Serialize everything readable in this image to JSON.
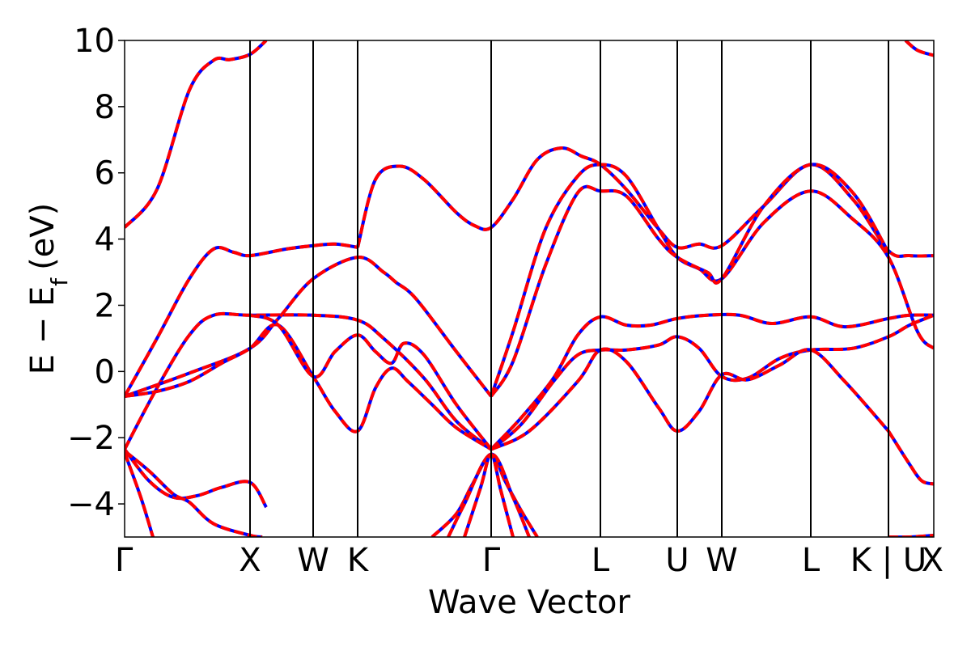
{
  "chart_data": {
    "type": "line",
    "title": "",
    "xlabel": "Wave Vector",
    "ylabel": "E − E",
    "ylabel_subscript": "f",
    "ylabel_unit": "(eV)",
    "ylim": [
      -5,
      10
    ],
    "xlim": [
      0,
      1
    ],
    "grid": false,
    "yticks": [
      {
        "value": 10,
        "label": "10"
      },
      {
        "value": 8,
        "label": "8"
      },
      {
        "value": 6,
        "label": "6"
      },
      {
        "value": 4,
        "label": "4"
      },
      {
        "value": 2,
        "label": "2"
      },
      {
        "value": 0,
        "label": "0"
      },
      {
        "value": -2,
        "label": "−2"
      },
      {
        "value": -4,
        "label": "−4"
      }
    ],
    "kpoints": [
      {
        "label": "Γ",
        "x": 0.0
      },
      {
        "label": "X",
        "x": 0.155
      },
      {
        "label": "W",
        "x": 0.233
      },
      {
        "label": "K",
        "x": 0.288
      },
      {
        "label": "Γ",
        "x": 0.453
      },
      {
        "label": "L",
        "x": 0.588
      },
      {
        "label": "U",
        "x": 0.683
      },
      {
        "label": "W",
        "x": 0.738
      },
      {
        "label": "L",
        "x": 0.848
      },
      {
        "label": "K | U",
        "x": 0.944
      },
      {
        "label": "X",
        "x": 1.0
      }
    ],
    "series_style": [
      {
        "color": "#ff0000",
        "dash": "solid"
      },
      {
        "color": "#0000ff",
        "dash": "dashed"
      }
    ],
    "bands": [
      {
        "x": [
          0,
          0.04,
          0.08,
          0.11,
          0.13,
          0.155,
          0.175
        ],
        "y": [
          4.35,
          5.5,
          8.5,
          9.4,
          9.42,
          9.58,
          10.0
        ]
      },
      {
        "x": [
          0,
          0.04,
          0.08,
          0.11,
          0.135,
          0.155,
          0.2,
          0.233,
          0.26,
          0.288
        ],
        "y": [
          -0.75,
          1.0,
          2.8,
          3.7,
          3.6,
          3.5,
          3.7,
          3.8,
          3.85,
          3.75
        ]
      },
      {
        "x": [
          0,
          0.04,
          0.08,
          0.11,
          0.155,
          0.233,
          0.288,
          0.32,
          0.37,
          0.41,
          0.453
        ],
        "y": [
          -2.35,
          -0.5,
          1.1,
          1.7,
          1.7,
          1.7,
          1.55,
          1.0,
          -0.2,
          -1.5,
          -2.35
        ]
      },
      {
        "x": [
          0,
          0.08,
          0.155,
          0.19,
          0.233,
          0.288,
          0.32,
          0.335,
          0.36,
          0.41,
          0.453
        ],
        "y": [
          -0.75,
          -0.05,
          0.7,
          1.6,
          2.8,
          3.45,
          3.0,
          2.7,
          2.2,
          0.6,
          -0.75
        ]
      },
      {
        "x": [
          0,
          0.04,
          0.08,
          0.12,
          0.155,
          0.19,
          0.233,
          0.26,
          0.288,
          0.31,
          0.33,
          0.35,
          0.38,
          0.41,
          0.453
        ],
        "y": [
          -0.75,
          -0.6,
          -0.3,
          0.25,
          0.7,
          1.4,
          -0.15,
          -1.2,
          -1.8,
          -0.5,
          0.1,
          -0.3,
          -1.0,
          -1.7,
          -2.35
        ]
      },
      {
        "x": [
          0.155,
          0.19,
          0.233,
          0.26,
          0.288,
          0.31,
          0.33,
          0.345,
          0.37,
          0.41,
          0.453
        ],
        "y": [
          1.7,
          1.4,
          -0.15,
          0.6,
          1.1,
          0.6,
          0.25,
          0.85,
          0.5,
          -1.0,
          -2.35
        ]
      },
      {
        "x": [
          0.288,
          0.31,
          0.34,
          0.37,
          0.41,
          0.433,
          0.453,
          0.48,
          0.51,
          0.54,
          0.565,
          0.588,
          0.62,
          0.66,
          0.683,
          0.71,
          0.738,
          0.79,
          0.848,
          0.9,
          0.944,
          0.97,
          1.0
        ],
        "y": [
          3.75,
          5.8,
          6.2,
          5.8,
          4.8,
          4.4,
          4.35,
          5.2,
          6.4,
          6.75,
          6.5,
          6.25,
          5.5,
          4.3,
          3.75,
          3.85,
          3.8,
          5.0,
          6.25,
          5.2,
          3.65,
          3.5,
          3.5
        ]
      },
      {
        "x": [
          0.453,
          0.48,
          0.52,
          0.56,
          0.588,
          0.62,
          0.66,
          0.683,
          0.71,
          0.738,
          0.79,
          0.848,
          0.9,
          0.944,
          0.98,
          1.0
        ],
        "y": [
          -0.75,
          1.2,
          4.3,
          5.9,
          6.25,
          5.9,
          4.3,
          3.45,
          3.1,
          2.8,
          4.5,
          5.45,
          4.6,
          3.45,
          1.2,
          0.7
        ]
      },
      {
        "x": [
          0.453,
          0.48,
          0.52,
          0.56,
          0.588,
          0.62,
          0.66,
          0.683,
          0.72,
          0.738,
          0.79,
          0.848,
          0.9,
          0.944
        ],
        "y": [
          -0.75,
          0.3,
          3.2,
          5.4,
          5.45,
          5.3,
          4.0,
          3.45,
          3.0,
          2.8,
          5.0,
          6.25,
          5.4,
          3.6
        ]
      },
      {
        "x": [
          0.453,
          0.49,
          0.53,
          0.56,
          0.588,
          0.62,
          0.65,
          0.683,
          0.72,
          0.76,
          0.8,
          0.848,
          0.89,
          0.944,
          0.97,
          1.0
        ],
        "y": [
          -2.35,
          -1.4,
          -0.2,
          1.1,
          1.65,
          1.4,
          1.4,
          1.6,
          1.7,
          1.7,
          1.45,
          1.65,
          1.35,
          1.6,
          1.7,
          1.7
        ]
      },
      {
        "x": [
          0.453,
          0.49,
          0.53,
          0.56,
          0.588,
          0.62,
          0.66,
          0.683,
          0.71,
          0.738,
          0.77,
          0.81,
          0.848,
          0.9,
          0.944,
          0.97,
          1.0
        ],
        "y": [
          -2.35,
          -1.6,
          -0.3,
          0.5,
          0.65,
          0.65,
          0.8,
          1.05,
          0.7,
          -0.15,
          -0.2,
          0.4,
          0.65,
          0.7,
          1.05,
          1.4,
          1.7
        ]
      },
      {
        "x": [
          0.453,
          0.5,
          0.56,
          0.588,
          0.62,
          0.66,
          0.683,
          0.71,
          0.738,
          0.77,
          0.81,
          0.848,
          0.89,
          0.944
        ],
        "y": [
          -2.35,
          -1.8,
          -0.3,
          0.65,
          0.3,
          -1.1,
          -1.8,
          -1.2,
          -0.1,
          -0.25,
          0.2,
          0.65,
          -0.3,
          -1.8
        ]
      },
      {
        "x": [
          0.944,
          0.97,
          0.985,
          1.0
        ],
        "y": [
          -1.8,
          -2.8,
          -3.3,
          -3.4
        ]
      },
      {
        "x": [
          0,
          0.03,
          0.06,
          0.09,
          0.12,
          0.155,
          0.175
        ],
        "y": [
          -2.35,
          -3.3,
          -3.8,
          -3.75,
          -3.5,
          -3.35,
          -4.1
        ]
      },
      {
        "x": [
          0,
          0.03,
          0.06,
          0.08,
          0.11,
          0.155,
          0.17
        ],
        "y": [
          -2.4,
          -3.0,
          -3.7,
          -3.95,
          -4.6,
          -4.95,
          -5.0
        ]
      },
      {
        "x": [
          0,
          0.02,
          0.035
        ],
        "y": [
          -2.45,
          -3.8,
          -5.0
        ]
      },
      {
        "x": [
          0.38,
          0.41,
          0.43,
          0.453,
          0.47,
          0.49,
          0.51
        ],
        "y": [
          -5.0,
          -4.3,
          -3.4,
          -2.5,
          -3.3,
          -4.2,
          -5.0
        ]
      },
      {
        "x": [
          0.4,
          0.42,
          0.453,
          0.48,
          0.5
        ],
        "y": [
          -5.0,
          -4.0,
          -2.5,
          -3.8,
          -5.0
        ]
      },
      {
        "x": [
          0.42,
          0.44,
          0.453,
          0.465,
          0.48
        ],
        "y": [
          -5.0,
          -3.5,
          -2.5,
          -3.6,
          -5.0
        ]
      },
      {
        "x": [
          0.965,
          0.98,
          1.0
        ],
        "y": [
          10.0,
          9.7,
          9.55
        ]
      },
      {
        "x": [
          0.944,
          0.97,
          1.0
        ],
        "y": [
          -5.0,
          -5.0,
          -4.95
        ]
      }
    ]
  }
}
